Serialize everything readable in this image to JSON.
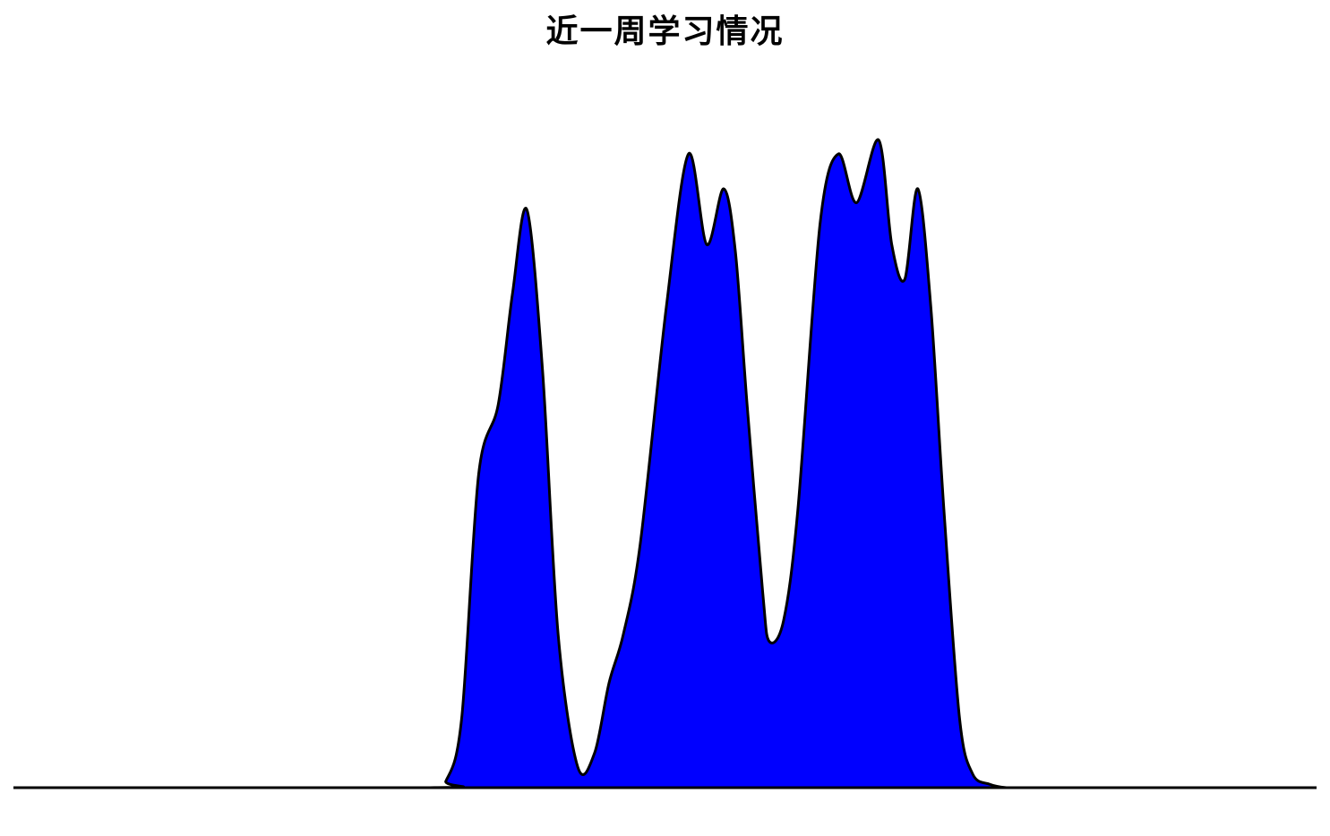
{
  "title": "近一周学习情况",
  "colors": {
    "fill": "#0000ff",
    "stroke": "#000000",
    "background": "#ffffff"
  },
  "chart_data": {
    "type": "area",
    "title": "近一周学习情况",
    "xlabel": "",
    "ylabel": "",
    "grid": false,
    "legend": "none",
    "xlim": [
      0,
      100
    ],
    "ylim": [
      0,
      100
    ],
    "x": [
      0,
      31.9,
      33.2,
      34.4,
      35.7,
      37.2,
      38.3,
      39.4,
      40.6,
      41.8,
      43.3,
      44.6,
      45.7,
      46.8,
      48.1,
      50.1,
      51.8,
      53.2,
      54.5,
      55.4,
      56.3,
      57.5,
      58.0,
      59.1,
      60.2,
      61.9,
      63.3,
      64.7,
      66.4,
      67.4,
      68.4,
      69.4,
      70.4,
      71.4,
      72.6,
      73.6,
      74.9,
      76.2,
      77.5,
      78.6,
      79.5,
      81.4,
      100
    ],
    "series": [
      {
        "values": [
          0,
          0,
          1,
          10,
          45,
          55,
          71,
          83,
          60,
          22,
          3,
          5,
          15,
          22,
          35,
          69,
          91,
          78,
          86,
          77,
          55,
          28,
          21,
          24,
          40,
          81,
          91,
          84,
          93,
          78,
          73,
          86,
          69,
          40,
          10,
          2,
          0.5,
          0,
          0,
          0,
          0,
          0,
          0
        ]
      }
    ]
  }
}
